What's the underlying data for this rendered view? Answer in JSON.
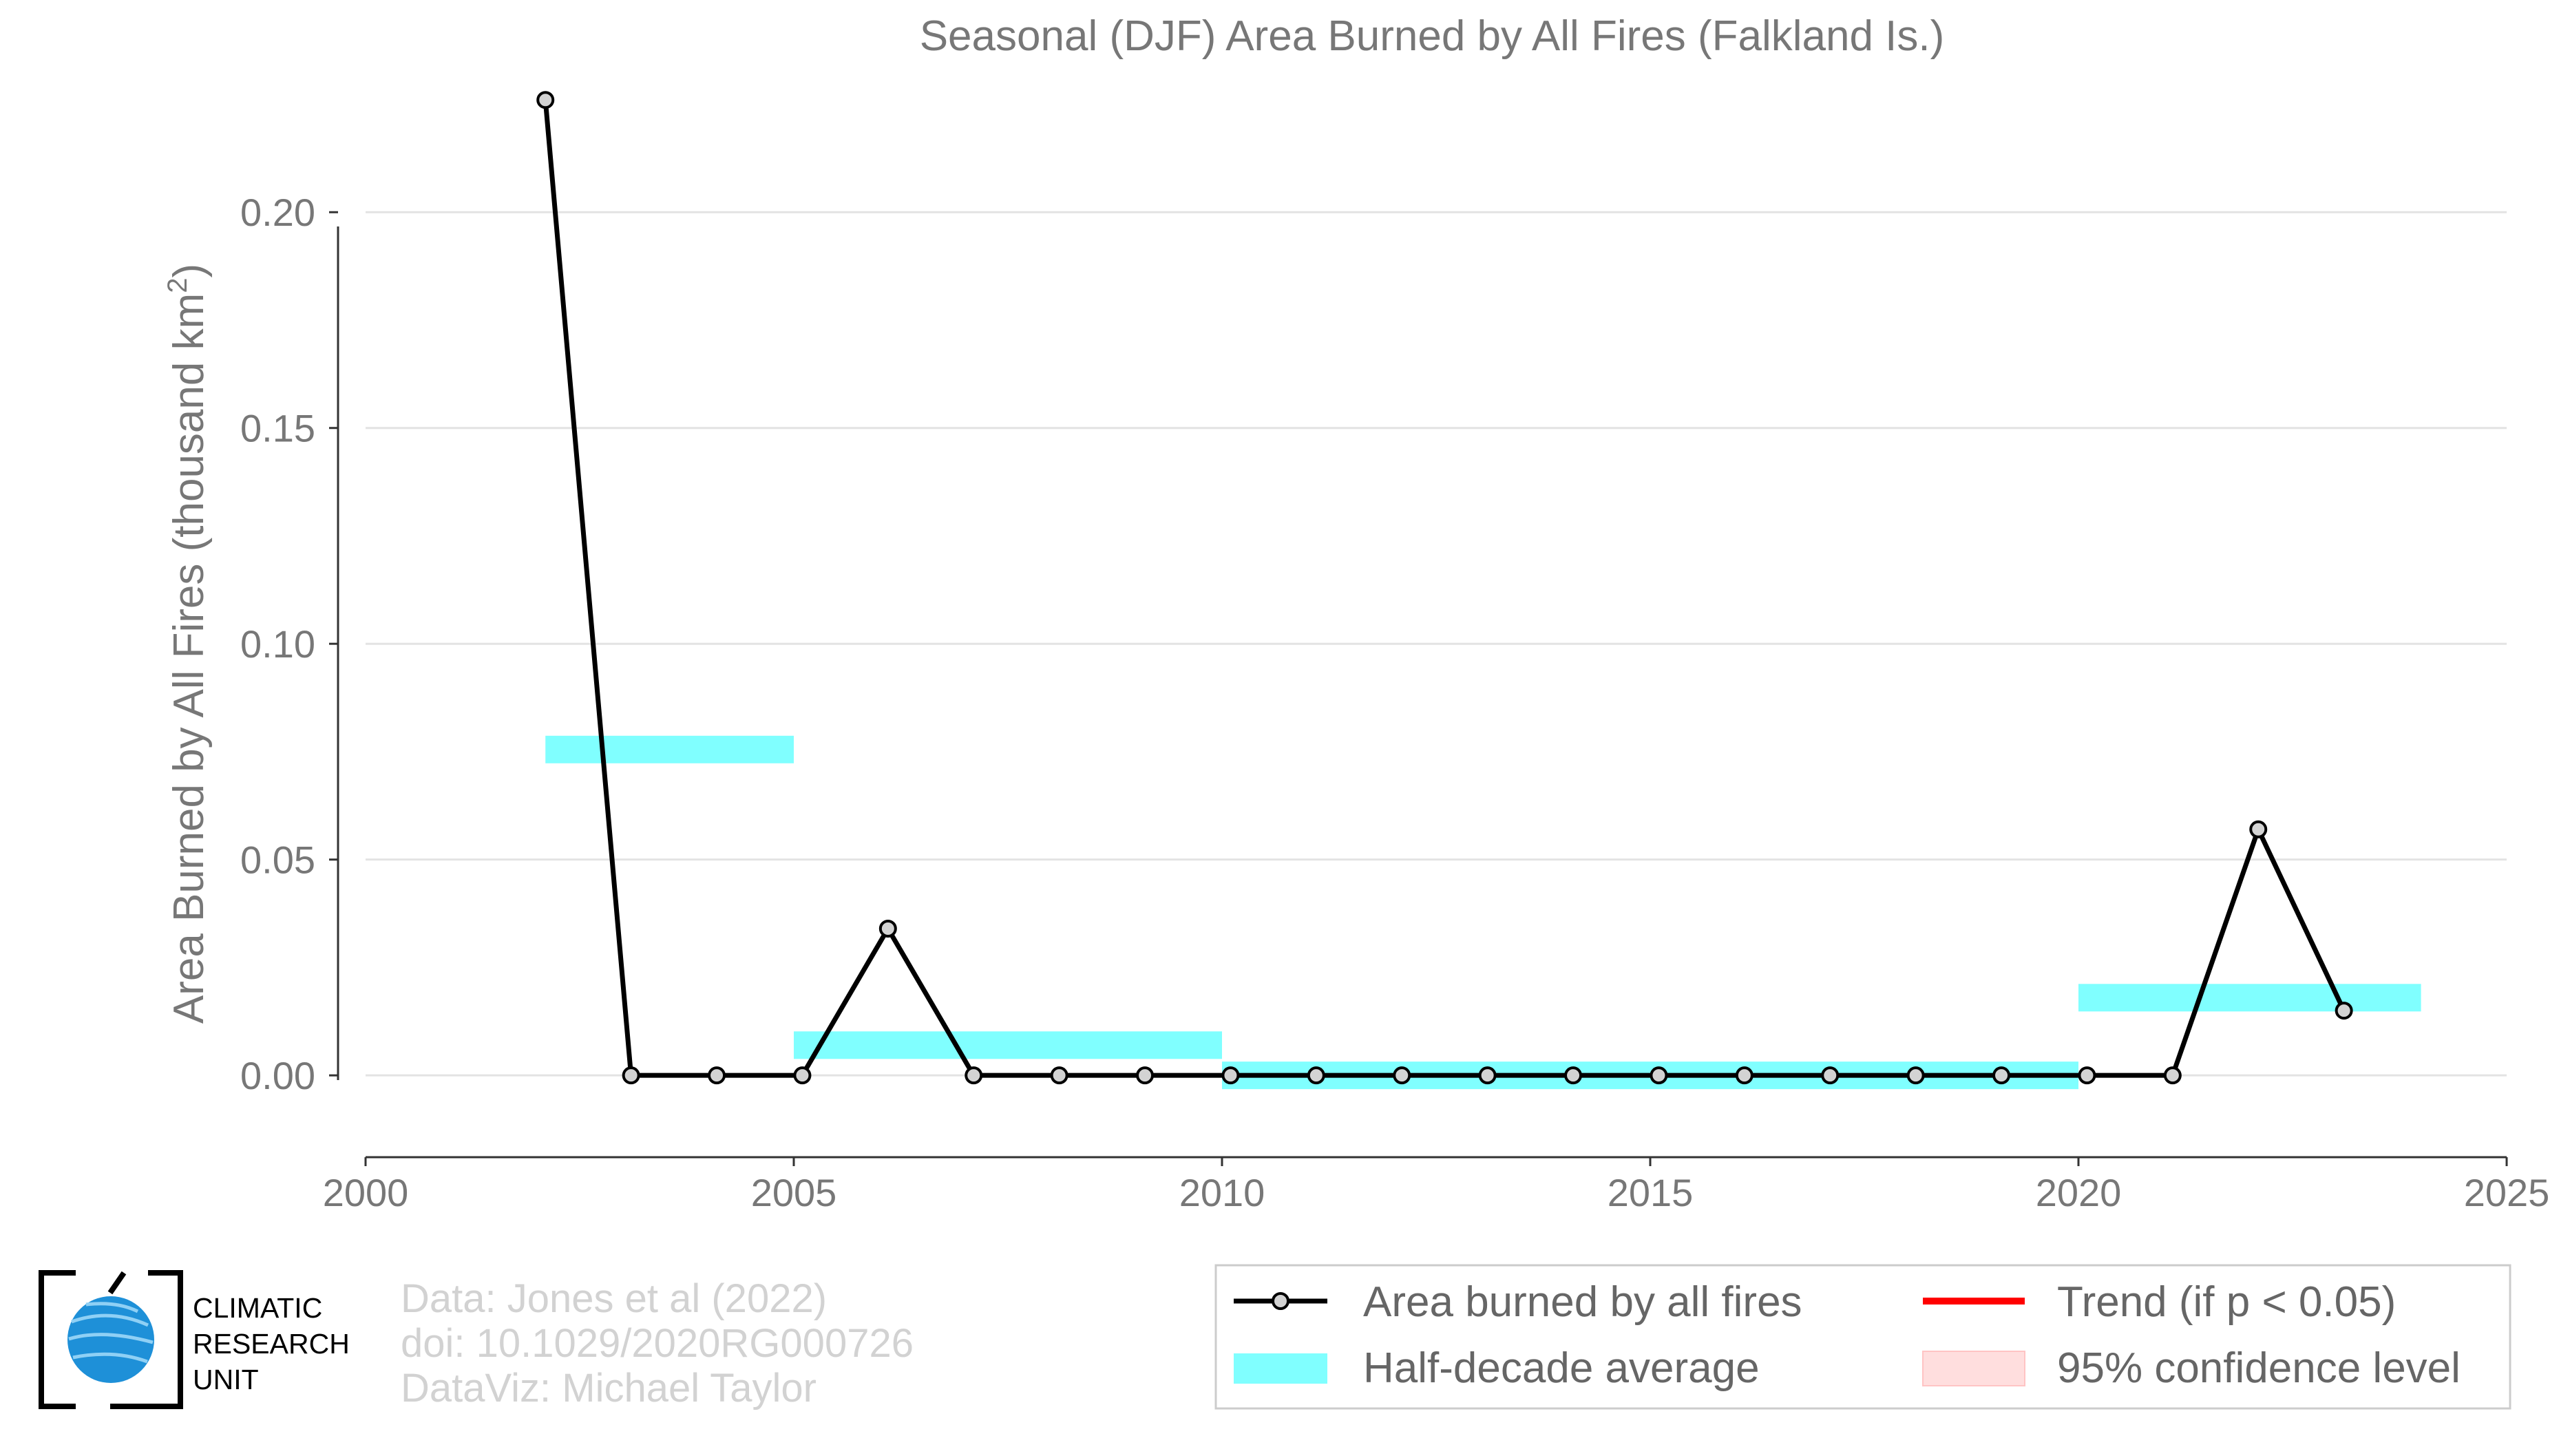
{
  "chart_data": {
    "type": "line",
    "title": "Seasonal (DJF) Area Burned by All Fires (Falkland Is.)",
    "ylabel_main": "Area Burned by All Fires (thousand km",
    "ylabel_sup": "2",
    "ylabel_end": ")",
    "xlabel": "",
    "xlim": [
      2000,
      2025
    ],
    "ylim": [
      -0.018,
      0.238
    ],
    "xticks": [
      2000,
      2005,
      2010,
      2015,
      2020,
      2025
    ],
    "yticks": [
      0.0,
      0.05,
      0.1,
      0.15,
      0.2
    ],
    "ytick_labels": [
      "0.00",
      "0.05",
      "0.10",
      "0.15",
      "0.20"
    ],
    "grid": "horizontal",
    "series": [
      {
        "name": "Area burned by all fires",
        "color": "#000000",
        "marker_fill": "#d3d3d3",
        "x": [
          2002.1,
          2003.1,
          2004.1,
          2005.1,
          2006.1,
          2007.1,
          2008.1,
          2009.1,
          2010.1,
          2011.1,
          2012.1,
          2013.1,
          2014.1,
          2015.1,
          2016.1,
          2017.1,
          2018.1,
          2019.1,
          2020.1,
          2021.1,
          2022.1,
          2023.1
        ],
        "values": [
          0.226,
          0.0,
          0.0,
          0.0,
          0.034,
          0.0,
          0.0,
          0.0,
          0.0,
          0.0,
          0.0,
          0.0,
          0.0,
          0.0,
          0.0,
          0.0,
          0.0,
          0.0,
          0.0,
          0.0,
          0.057,
          0.015
        ]
      }
    ],
    "half_decade_averages": {
      "name": "Half-decade average",
      "color": "#80ffff",
      "segments": [
        {
          "x0": 2002.1,
          "x1": 2005.0,
          "value": 0.0755
        },
        {
          "x0": 2005.0,
          "x1": 2010.0,
          "value": 0.007
        },
        {
          "x0": 2010.0,
          "x1": 2020.0,
          "value": 0.0
        },
        {
          "x0": 2020.0,
          "x1": 2024.0,
          "value": 0.018
        }
      ]
    },
    "legend": {
      "placement": "bottom-right",
      "entries": [
        {
          "label": "Area burned by all fires",
          "kind": "line-marker",
          "color": "#000000"
        },
        {
          "label": "Trend (if p < 0.05)",
          "kind": "line",
          "color": "#ff0000"
        },
        {
          "label": "Half-decade average",
          "kind": "band",
          "color": "#80ffff"
        },
        {
          "label": "95% confidence level",
          "kind": "band",
          "color": "#ffdede"
        }
      ]
    }
  },
  "credits": [
    "Data: Jones et al (2022)",
    "doi: 10.1029/2020RG000726",
    "DataViz: Michael Taylor"
  ],
  "logo": {
    "icon": "globe-icon",
    "lines": [
      "CLIMATIC",
      "RESEARCH",
      "UNIT"
    ],
    "globe_color": "#1e90d8"
  }
}
